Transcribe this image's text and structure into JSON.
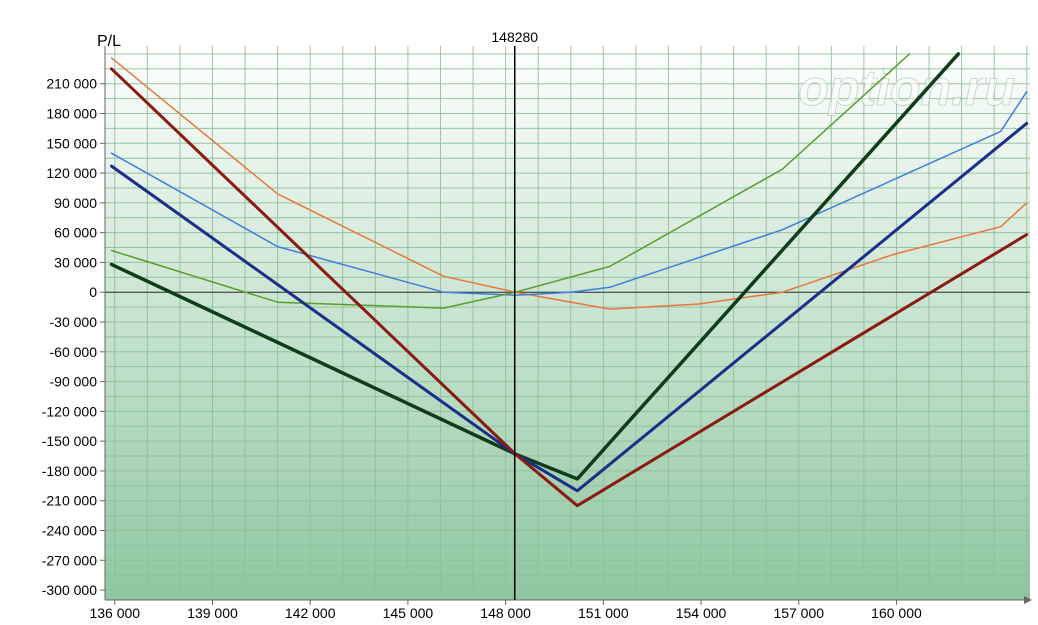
{
  "chart_data": {
    "type": "line",
    "ylabel": "P/L",
    "xlabel": "",
    "title": "",
    "watermark": "option.ru",
    "marker": {
      "x": 148280,
      "label": "148280"
    },
    "xlim": [
      135700,
      164100
    ],
    "ylim": [
      -310000,
      248000
    ],
    "x_ticks": [
      136000,
      139000,
      142000,
      145000,
      148000,
      151000,
      154000,
      157000,
      160000
    ],
    "x_tick_labels": [
      "136 000",
      "139 000",
      "142 000",
      "145 000",
      "148 000",
      "151 000",
      "154 000",
      "157 000",
      "160 000"
    ],
    "y_ticks": [
      210000,
      180000,
      150000,
      120000,
      90000,
      60000,
      30000,
      0,
      -30000,
      -60000,
      -90000,
      -120000,
      -150000,
      -180000,
      -210000,
      -240000,
      -270000,
      -300000
    ],
    "y_tick_labels": [
      "210 000",
      "180 000",
      "150 000",
      "120 000",
      "90 000",
      "60 000",
      "30 000",
      "0",
      "-30 000",
      "-60 000",
      "-90 000",
      "-120 000",
      "-150 000",
      "-180 000",
      "-210 000",
      "-240 000",
      "-270 000",
      "-300 000"
    ],
    "grid": true,
    "colors": {
      "grid": "#8fbf9c",
      "bg_top": "#ffffff",
      "bg_bottom": "#8ec79f"
    },
    "series": [
      {
        "color": "#e8773a",
        "width": 1.5,
        "x": [
          135900,
          141000,
          146100,
          148300,
          151200,
          153900,
          156500,
          159900,
          163200,
          164000
        ],
        "y": [
          236000,
          99000,
          16000,
          0,
          -17000,
          -12000,
          0,
          38000,
          66000,
          90000
        ]
      },
      {
        "color": "#3f7ee0",
        "width": 1.5,
        "x": [
          135900,
          141000,
          146100,
          148300,
          150000,
          151200,
          156500,
          163200,
          164000
        ],
        "y": [
          140000,
          46000,
          0,
          -3000,
          0,
          5000,
          63000,
          162000,
          202000
        ]
      },
      {
        "color": "#5a9e2b",
        "width": 1.5,
        "x": [
          135900,
          141000,
          146100,
          148300,
          151200,
          156500,
          160400
        ],
        "y": [
          42000,
          -10000,
          -16000,
          0,
          26000,
          124000,
          240000
        ]
      },
      {
        "color": "#0f3d1a",
        "width": 3.5,
        "x": [
          135900,
          148300,
          150200,
          161900
        ],
        "y": [
          28000,
          -163000,
          -188000,
          240000
        ]
      },
      {
        "color": "#1a2f8a",
        "width": 3,
        "x": [
          135900,
          148300,
          150200,
          164000
        ],
        "y": [
          127000,
          -163000,
          -200000,
          170000
        ]
      },
      {
        "color": "#8b1a10",
        "width": 3,
        "x": [
          135900,
          148300,
          150200,
          164000
        ],
        "y": [
          225000,
          -163000,
          -215000,
          58000
        ]
      }
    ]
  }
}
